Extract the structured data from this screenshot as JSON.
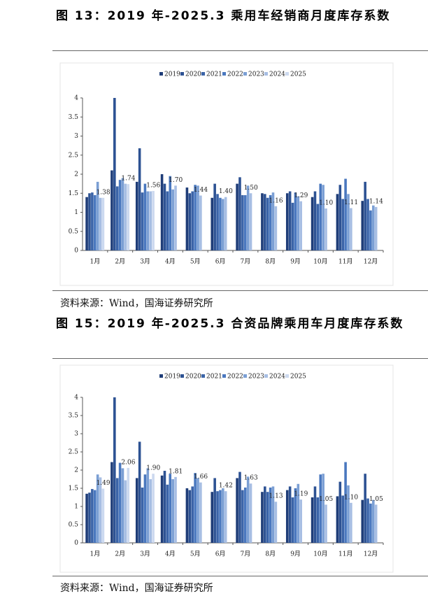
{
  "chart_data": [
    {
      "type": "bar",
      "title": "图 13：2019 年-2025.3 乘用车经销商月度库存系数",
      "source": "资料来源：Wind，国海证券研究所",
      "categories": [
        "1月",
        "2月",
        "3月",
        "4月",
        "5月",
        "6月",
        "7月",
        "8月",
        "9月",
        "10月",
        "11月",
        "12月"
      ],
      "ylim": [
        0,
        4
      ],
      "yticks": [
        0,
        0.5,
        1,
        1.5,
        2,
        2.5,
        3,
        3.5,
        4
      ],
      "legend": "top",
      "series": [
        {
          "name": "2019",
          "color": "#1f3d78",
          "values": [
            1.4,
            2.1,
            1.8,
            2.0,
            1.65,
            1.38,
            1.75,
            1.5,
            1.5,
            1.4,
            1.48,
            1.3
          ]
        },
        {
          "name": "2020",
          "color": "#2d5293",
          "values": [
            1.5,
            4.0,
            2.68,
            1.75,
            1.5,
            1.75,
            1.92,
            1.48,
            1.55,
            1.55,
            1.72,
            1.8
          ]
        },
        {
          "name": "2021",
          "color": "#3b64a8",
          "values": [
            1.52,
            1.68,
            1.52,
            1.55,
            1.55,
            1.48,
            1.45,
            1.38,
            1.25,
            1.22,
            1.35,
            1.35
          ]
        },
        {
          "name": "2022",
          "color": "#4a78bf",
          "values": [
            1.45,
            1.85,
            1.75,
            1.95,
            1.72,
            1.38,
            1.45,
            1.45,
            1.52,
            1.75,
            1.88,
            1.05
          ]
        },
        {
          "name": "2023",
          "color": "#7b9fd4",
          "values": [
            1.8,
            1.9,
            1.55,
            1.6,
            1.7,
            1.35,
            1.7,
            1.52,
            1.42,
            1.72,
            1.48,
            1.18
          ]
        },
        {
          "name": "2024",
          "color": "#a7bee3",
          "values": [
            1.38,
            1.75,
            1.55,
            1.7,
            1.44,
            1.4,
            1.5,
            1.16,
            1.29,
            1.1,
            1.11,
            1.14
          ],
          "value_labels": [
            null,
            null,
            null,
            "1.70",
            "1.44",
            "1.40",
            "1.50",
            "1.16",
            "1.29",
            "1.10",
            "1.11",
            "1.14"
          ]
        },
        {
          "name": "2025",
          "color": "#ccd9ef",
          "values": [
            1.38,
            1.74,
            1.56,
            null,
            null,
            null,
            null,
            null,
            null,
            null,
            null,
            null
          ],
          "value_labels": [
            "1.38",
            "1.74",
            "1.56",
            null,
            null,
            null,
            null,
            null,
            null,
            null,
            null,
            null
          ]
        }
      ]
    },
    {
      "type": "bar",
      "title": "图 15：2019 年-2025.3 合资品牌乘用车月度库存系数",
      "source": "资料来源：Wind，国海证券研究所",
      "categories": [
        "1月",
        "2月",
        "3月",
        "4月",
        "5月",
        "6月",
        "7月",
        "8月",
        "9月",
        "10月",
        "11月",
        "12月"
      ],
      "ylim": [
        0,
        4
      ],
      "yticks": [
        0,
        0.5,
        1,
        1.5,
        2,
        2.5,
        3,
        3.5,
        4
      ],
      "legend": "top",
      "series": [
        {
          "name": "2019",
          "color": "#1f3d78",
          "values": [
            1.35,
            2.22,
            1.78,
            1.85,
            1.5,
            1.4,
            1.78,
            1.4,
            1.45,
            1.25,
            1.28,
            1.18
          ]
        },
        {
          "name": "2020",
          "color": "#2d5293",
          "values": [
            1.38,
            4.0,
            2.78,
            1.98,
            1.45,
            1.78,
            1.95,
            1.55,
            1.55,
            1.55,
            1.68,
            1.9
          ]
        },
        {
          "name": "2021",
          "color": "#3b64a8",
          "values": [
            1.48,
            1.78,
            1.52,
            1.6,
            1.55,
            1.42,
            1.45,
            1.4,
            1.25,
            1.25,
            1.3,
            1.22
          ]
        },
        {
          "name": "2022",
          "color": "#4a78bf",
          "values": [
            1.45,
            2.2,
            1.88,
            1.9,
            1.92,
            1.45,
            1.52,
            1.52,
            1.5,
            1.88,
            2.22,
            1.08
          ]
        },
        {
          "name": "2023",
          "color": "#7b9fd4",
          "values": [
            1.88,
            2.05,
            2.05,
            1.75,
            1.78,
            1.5,
            1.82,
            1.55,
            1.62,
            1.9,
            1.58,
            1.18
          ]
        },
        {
          "name": "2024",
          "color": "#a7bee3",
          "values": [
            1.8,
            1.72,
            1.75,
            1.81,
            1.66,
            1.42,
            1.63,
            1.13,
            1.19,
            1.05,
            1.1,
            1.05
          ],
          "value_labels": [
            null,
            null,
            null,
            "1.81",
            "1.66",
            "1.42",
            "1.63",
            "1.13",
            "1.19",
            "1.05",
            "1.10",
            "1.05"
          ]
        },
        {
          "name": "2025",
          "color": "#ccd9ef",
          "values": [
            1.49,
            2.06,
            1.9,
            null,
            null,
            null,
            null,
            null,
            null,
            null,
            null,
            null
          ],
          "value_labels": [
            "1.49",
            "2.06",
            "1.90",
            null,
            null,
            null,
            null,
            null,
            null,
            null,
            null,
            null
          ]
        }
      ]
    }
  ]
}
